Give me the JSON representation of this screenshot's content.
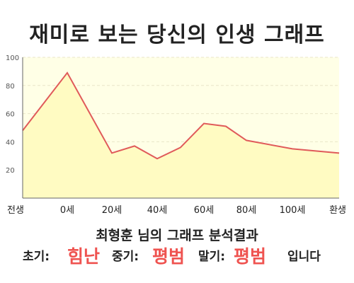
{
  "title": "재미로 보는 당신의 인생 그래프",
  "chart_data": {
    "type": "area",
    "x_categories": [
      "전생",
      "0세",
      "20세",
      "40세",
      "60세",
      "80세",
      "100세",
      "환생"
    ],
    "y_ticks": [
      20,
      40,
      60,
      80,
      100
    ],
    "ylim": [
      0,
      100
    ],
    "grid": true,
    "points": [
      {
        "x": "전생",
        "y": 48
      },
      {
        "x": "0세",
        "y": 89
      },
      {
        "x": "20세",
        "y": 32
      },
      {
        "x": "30세",
        "y": 37
      },
      {
        "x": "40세",
        "y": 28
      },
      {
        "x": "50세",
        "y": 36
      },
      {
        "x": "60세",
        "y": 53
      },
      {
        "x": "70세",
        "y": 51
      },
      {
        "x": "80세",
        "y": 41
      },
      {
        "x": "100세",
        "y": 35
      },
      {
        "x": "환생",
        "y": 32
      }
    ],
    "line_color": "#e05a5a",
    "fill_color": "#fffbc2",
    "plot_background": "#ffffe6"
  },
  "summary": {
    "line1": "최형훈 님의 그래프 분석결과",
    "early_label": "초기:",
    "early_value": "힘난",
    "middle_label": "중기:",
    "middle_value": "평범",
    "late_label": "말기:",
    "late_value": "평범",
    "ending": "입니다"
  }
}
